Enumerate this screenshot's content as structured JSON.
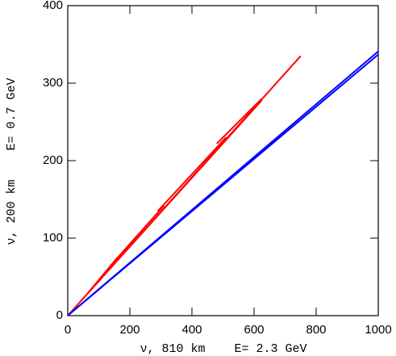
{
  "chart_data": {
    "type": "line",
    "x_label": "ν, 810 km    E= 2.3 GeV",
    "y_label": "ν, 200 km    E= 0.7 GeV",
    "xlim": [
      0,
      1000
    ],
    "ylim": [
      0,
      400
    ],
    "xticks": [
      0,
      200,
      400,
      600,
      800,
      1000
    ],
    "yticks": [
      0,
      100,
      200,
      300,
      400
    ],
    "series": [
      {
        "color": "#ff0000",
        "x": [
          0,
          750,
          null,
          0,
          625,
          null,
          50,
          160,
          null,
          150,
          310,
          null,
          290,
          510,
          null,
          480,
          625
        ],
        "values": [
          0,
          335,
          null,
          0,
          278,
          null,
          22,
          75,
          null,
          70,
          142,
          null,
          135,
          230,
          null,
          222,
          280
        ]
      },
      {
        "color": "#0000ff",
        "x": [
          0,
          1000,
          null,
          0,
          1000
        ],
        "values": [
          0,
          341,
          null,
          0,
          337
        ]
      }
    ]
  }
}
